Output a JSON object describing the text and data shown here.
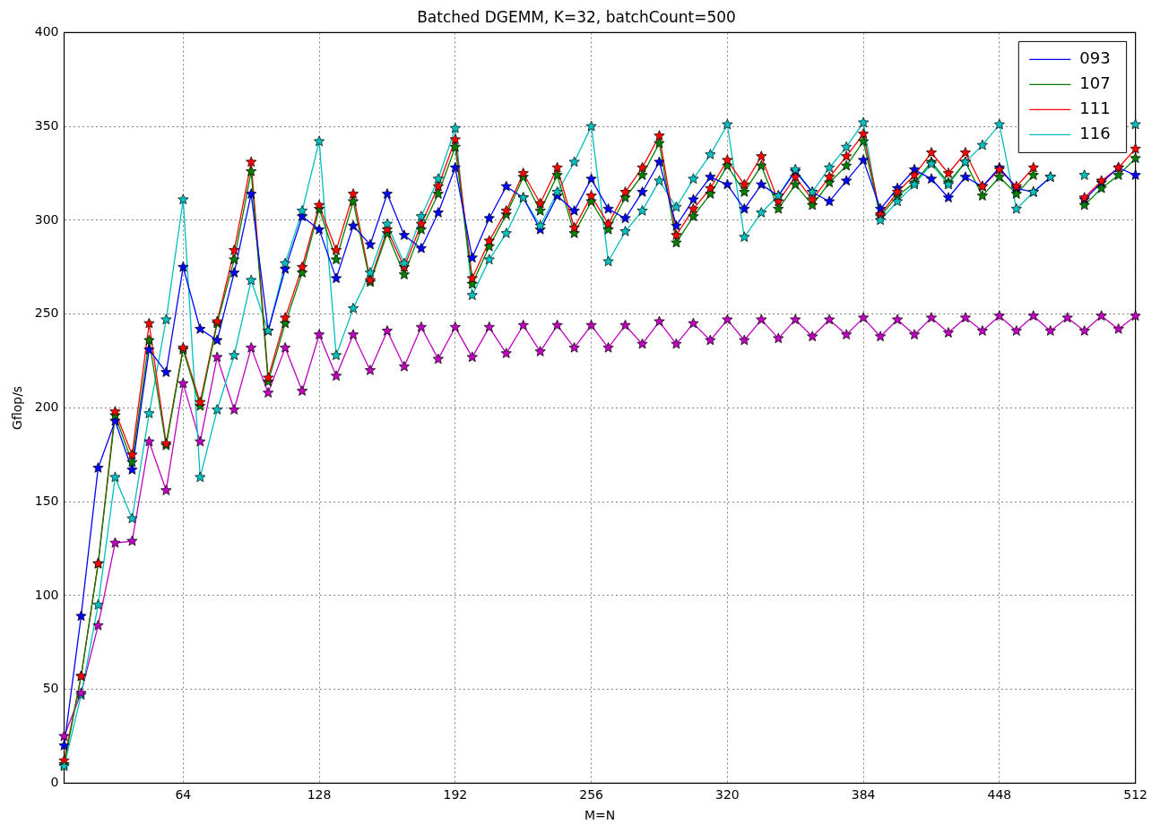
{
  "chart_data": {
    "type": "line",
    "title": "Batched DGEMM, K=32, batchCount=500",
    "xlabel": "M=N",
    "ylabel": "Gflop/s",
    "x": [
      8,
      16,
      24,
      32,
      40,
      48,
      56,
      64,
      72,
      80,
      88,
      96,
      104,
      112,
      120,
      128,
      136,
      144,
      152,
      160,
      168,
      176,
      184,
      192,
      200,
      208,
      216,
      224,
      232,
      240,
      248,
      256,
      264,
      272,
      280,
      288,
      296,
      304,
      312,
      320,
      328,
      336,
      344,
      352,
      360,
      368,
      376,
      384,
      392,
      400,
      408,
      416,
      424,
      432,
      440,
      448,
      456,
      464,
      472,
      480,
      488,
      496,
      504,
      512
    ],
    "xlim": [
      8,
      512
    ],
    "xticks": [
      64,
      128,
      192,
      256,
      320,
      384,
      448,
      512
    ],
    "ylim": [
      0,
      400
    ],
    "yticks": [
      0,
      50,
      100,
      150,
      200,
      250,
      300,
      350,
      400
    ],
    "grid": true,
    "legend": "top right",
    "marker": "star",
    "line_style": "solid",
    "series": [
      {
        "name": "093",
        "color": "#0000ff",
        "values": [
          20,
          89,
          168,
          193,
          167,
          231,
          219,
          275,
          242,
          236,
          272,
          314,
          241,
          274,
          302,
          295,
          269,
          297,
          287,
          314,
          292,
          285,
          304,
          328,
          280,
          301,
          318,
          312,
          295,
          313,
          305,
          322,
          306,
          301,
          315,
          331,
          297,
          311,
          323,
          319,
          306,
          319,
          313,
          326,
          315,
          310,
          321,
          332,
          306,
          317,
          327,
          322,
          312,
          323,
          318,
          328,
          317,
          315,
          323,
          null,
          311,
          320,
          328,
          324
        ]
      },
      {
        "name": "107",
        "color": "#008000",
        "values": [
          10,
          57,
          117,
          196,
          171,
          236,
          180,
          231,
          201,
          245,
          279,
          326,
          214,
          245,
          272,
          306,
          279,
          310,
          267,
          293,
          271,
          295,
          314,
          339,
          266,
          286,
          303,
          323,
          305,
          324,
          293,
          310,
          295,
          312,
          324,
          341,
          288,
          302,
          314,
          329,
          315,
          329,
          306,
          319,
          308,
          320,
          329,
          342,
          302,
          313,
          320,
          331,
          320,
          331,
          313,
          323,
          314,
          324,
          null,
          null,
          308,
          317,
          324,
          333
        ]
      },
      {
        "name": "111",
        "color": "#ff0000",
        "values": [
          12,
          57,
          117,
          198,
          175,
          245,
          181,
          232,
          203,
          246,
          284,
          331,
          216,
          248,
          275,
          308,
          284,
          314,
          268,
          295,
          275,
          298,
          318,
          343,
          269,
          289,
          305,
          325,
          309,
          328,
          296,
          313,
          298,
          315,
          328,
          345,
          292,
          306,
          317,
          332,
          319,
          334,
          310,
          323,
          311,
          323,
          334,
          346,
          303,
          315,
          324,
          336,
          325,
          336,
          318,
          327,
          318,
          328,
          null,
          null,
          312,
          321,
          328,
          338
        ]
      },
      {
        "name": "116",
        "color": "#00bfbf",
        "values": [
          9,
          47,
          95,
          163,
          141,
          197,
          247,
          311,
          163,
          199,
          228,
          268,
          241,
          277,
          305,
          342,
          228,
          253,
          272,
          298,
          277,
          302,
          322,
          349,
          260,
          279,
          293,
          312,
          297,
          315,
          331,
          350,
          278,
          294,
          305,
          321,
          307,
          322,
          335,
          351,
          291,
          304,
          313,
          327,
          315,
          328,
          339,
          352,
          300,
          310,
          319,
          330,
          319,
          331,
          340,
          351,
          306,
          315,
          323,
          null,
          324,
          null,
          null,
          351
        ]
      },
      {
        "color": "#bf00bf",
        "values": [
          25,
          48,
          84,
          128,
          129,
          182,
          156,
          213,
          182,
          227,
          199,
          232,
          208,
          232,
          209,
          239,
          217,
          239,
          220,
          241,
          222,
          243,
          226,
          243,
          227,
          243,
          229,
          244,
          230,
          244,
          232,
          244,
          232,
          244,
          234,
          246,
          234,
          245,
          236,
          247,
          236,
          247,
          237,
          247,
          238,
          247,
          239,
          248,
          238,
          247,
          239,
          248,
          240,
          248,
          241,
          249,
          241,
          249,
          241,
          248,
          241,
          249,
          242,
          249
        ]
      }
    ]
  }
}
